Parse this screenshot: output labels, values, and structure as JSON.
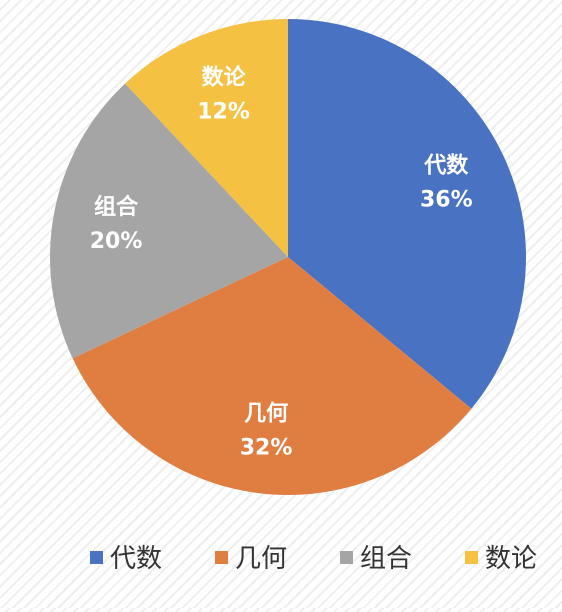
{
  "chart_data": {
    "type": "pie",
    "title": "",
    "slices": [
      {
        "label": "代数",
        "value": 36,
        "value_label": "36%",
        "color": "#4a72c2"
      },
      {
        "label": "几何",
        "value": 32,
        "value_label": "32%",
        "color": "#e07e42"
      },
      {
        "label": "组合",
        "value": 20,
        "value_label": "20%",
        "color": "#a5a5a5"
      },
      {
        "label": "数论",
        "value": 12,
        "value_label": "12%",
        "color": "#f5c142"
      }
    ],
    "start_angle": "12 o'clock",
    "direction": "clockwise",
    "legend": {
      "placement": "bottom"
    },
    "data_labels": "category name and percentage inside each slice, white bold text"
  }
}
